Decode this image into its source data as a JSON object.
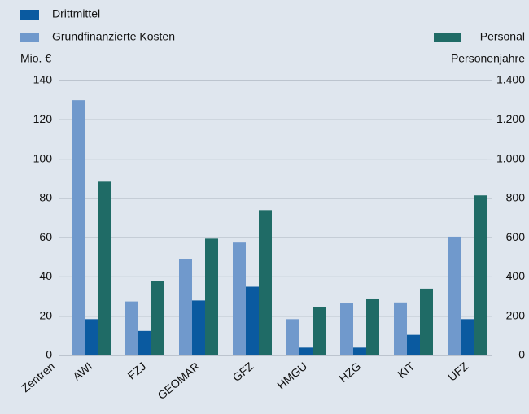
{
  "chart_data": {
    "type": "bar",
    "x_label": "Zentren",
    "y_label": "Mio. €",
    "y2_label": "Personenjahre",
    "categories": [
      "AWI",
      "FZJ",
      "GEOMAR",
      "GFZ",
      "HMGU",
      "HZG",
      "KIT",
      "UFZ"
    ],
    "series": [
      {
        "name": "Drittmittel",
        "color": "#0a5aa0",
        "values": [
          18.5,
          12.5,
          28,
          35,
          4,
          4,
          10.5,
          18.5
        ]
      },
      {
        "name": "Grundfinanzierte Kosten",
        "color": "#7099cc",
        "values": [
          130,
          27.5,
          49,
          57.5,
          18.5,
          26.5,
          27,
          60.5
        ]
      },
      {
        "name": "Personal",
        "color": "#1f6b66",
        "axis": "y2",
        "values": [
          885,
          380,
          595,
          740,
          245,
          290,
          340,
          815
        ]
      }
    ],
    "ylim": [
      0,
      140
    ],
    "yticks": [
      0,
      20,
      40,
      60,
      80,
      100,
      120,
      140
    ],
    "y2lim": [
      0,
      1400
    ],
    "y2ticks": [
      0,
      200,
      400,
      600,
      800,
      {
        "value": 1000,
        "label": "1.000"
      },
      {
        "value": 1200,
        "label": "1.200"
      },
      {
        "value": 1400,
        "label": "1.400"
      }
    ],
    "grid": true
  }
}
